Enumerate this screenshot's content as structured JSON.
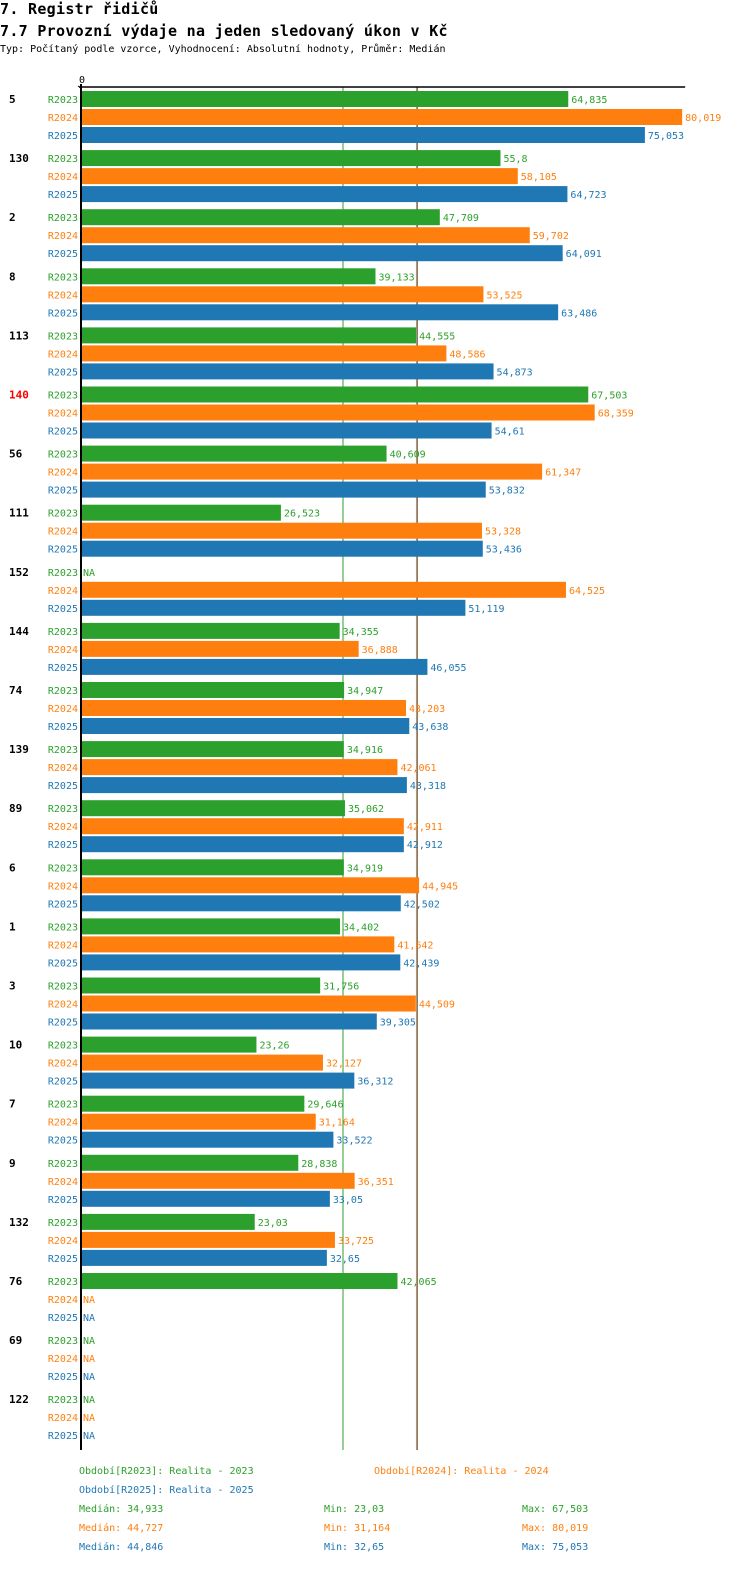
{
  "header": {
    "title": "7. Registr řidičů",
    "subtitle": "7.7 Provozní výdaje na jeden sledovaný úkon v Kč",
    "description": "Typ: Počítaný podle vzorce, Vyhodnocení: Absolutní hodnoty, Průměr: Medián"
  },
  "colors": {
    "R2023": "#2ca02c",
    "R2024": "#ff7f0e",
    "R2025": "#1f77b4",
    "highlight": "#ff0000"
  },
  "chart_data": {
    "type": "bar",
    "orientation": "horizontal",
    "title": "7.7 Provozní výdaje na jeden sledovaný úkon v Kč",
    "xlabel": "",
    "ylabel": "",
    "x_tick_labels": [
      "0"
    ],
    "xlim": [
      0,
      80.019
    ],
    "grid": false,
    "series_names": [
      "R2023",
      "R2024",
      "R2025"
    ],
    "categories": [
      "5",
      "130",
      "2",
      "8",
      "113",
      "140",
      "56",
      "111",
      "152",
      "144",
      "74",
      "139",
      "89",
      "6",
      "1",
      "3",
      "10",
      "7",
      "9",
      "132",
      "76",
      "69",
      "122"
    ],
    "highlighted_category": "140",
    "series": [
      {
        "name": "R2023",
        "values": [
          64.835,
          55.8,
          47.709,
          39.133,
          44.555,
          67.503,
          40.609,
          26.523,
          null,
          34.355,
          34.947,
          34.916,
          35.062,
          34.919,
          34.402,
          31.756,
          23.26,
          29.646,
          28.838,
          23.03,
          42.065,
          null,
          null
        ],
        "labels": [
          "64,835",
          "55,8",
          "47,709",
          "39,133",
          "44,555",
          "67,503",
          "40,609",
          "26,523",
          "NA",
          "34,355",
          "34,947",
          "34,916",
          "35,062",
          "34,919",
          "34,402",
          "31,756",
          "23,26",
          "29,646",
          "28,838",
          "23,03",
          "42,065",
          "NA",
          "NA"
        ]
      },
      {
        "name": "R2024",
        "values": [
          80.019,
          58.105,
          59.702,
          53.525,
          48.586,
          68.359,
          61.347,
          53.328,
          64.525,
          36.888,
          43.203,
          42.061,
          42.911,
          44.945,
          41.642,
          44.509,
          32.127,
          31.164,
          36.351,
          33.725,
          null,
          null,
          null
        ],
        "labels": [
          "80,019",
          "58,105",
          "59,702",
          "53,525",
          "48,586",
          "68,359",
          "61,347",
          "53,328",
          "64,525",
          "36,888",
          "43,203",
          "42,061",
          "42,911",
          "44,945",
          "41,642",
          "44,509",
          "32,127",
          "31,164",
          "36,351",
          "33,725",
          "NA",
          "NA",
          "NA"
        ]
      },
      {
        "name": "R2025",
        "values": [
          75.053,
          64.723,
          64.091,
          63.486,
          54.873,
          54.61,
          53.832,
          53.436,
          51.119,
          46.055,
          43.638,
          43.318,
          42.912,
          42.502,
          42.439,
          39.305,
          36.312,
          33.522,
          33.05,
          32.65,
          null,
          null,
          null
        ],
        "labels": [
          "75,053",
          "64,723",
          "64,091",
          "63,486",
          "54,873",
          "54,61",
          "53,832",
          "53,436",
          "51,119",
          "46,055",
          "43,638",
          "43,318",
          "42,912",
          "42,502",
          "42,439",
          "39,305",
          "36,312",
          "33,522",
          "33,05",
          "32,65",
          "NA",
          "NA",
          "NA"
        ]
      }
    ],
    "medians": {
      "R2023": 34.933,
      "R2024": 44.727,
      "R2025": 44.846
    },
    "legend": [
      {
        "series": "R2023",
        "text": "Období[R2023]: Realita - 2023"
      },
      {
        "series": "R2024",
        "text": "Období[R2024]: Realita - 2024"
      },
      {
        "series": "R2025",
        "text": "Období[R2025]: Realita - 2025"
      }
    ],
    "legend_position": "bottom",
    "stats": [
      {
        "series": "R2023",
        "median": "Medián: 34,933",
        "min": "Min: 23,03",
        "max": "Max: 67,503"
      },
      {
        "series": "R2024",
        "median": "Medián: 44,727",
        "min": "Min: 31,164",
        "max": "Max: 80,019"
      },
      {
        "series": "R2025",
        "median": "Medián: 44,846",
        "min": "Min: 32,65",
        "max": "Max: 75,053"
      }
    ]
  }
}
